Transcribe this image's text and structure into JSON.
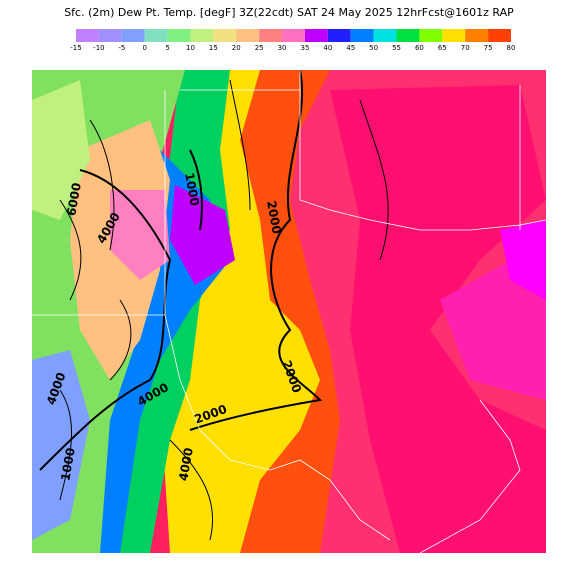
{
  "header": {
    "title": "Sfc. (2m) Dew Pt. Temp. [degF] 3Z(22cdt) SAT 24 May 2025 12hrFcst@1601z RAP"
  },
  "legend": {
    "labels": [
      -15,
      -10,
      -5,
      0,
      5,
      10,
      15,
      20,
      25,
      30,
      35,
      40,
      45,
      50,
      55,
      60,
      65,
      70,
      75,
      80
    ],
    "colors": [
      "#c080ff",
      "#a090ff",
      "#80a0ff",
      "#80e0c0",
      "#80f080",
      "#c0f080",
      "#f0e080",
      "#ffc080",
      "#ff8080",
      "#ff70c0",
      "#c000ff",
      "#2020ff",
      "#0080ff",
      "#00e0e0",
      "#00e040",
      "#80ff00",
      "#ffe000",
      "#ff8000",
      "#ff4000"
    ]
  },
  "map": {
    "contour_labels": [
      "6000",
      "4000",
      "1000",
      "2000",
      "2000",
      "2000",
      "4000",
      "4000",
      "1000",
      "4000"
    ]
  }
}
